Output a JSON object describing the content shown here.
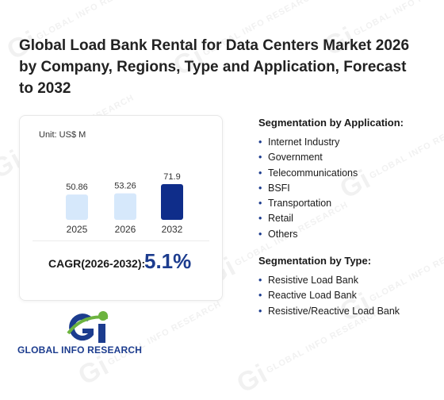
{
  "title": "Global Load Bank Rental for Data Centers Market 2026 by Company, Regions, Type and Application, Forecast to 2032",
  "watermark_text": "GLOBAL INFO RESEARCH",
  "chart_data": {
    "type": "bar",
    "unit": "Unit: US$ M",
    "categories": [
      "2025",
      "2026",
      "2032"
    ],
    "values": [
      50.86,
      53.26,
      71.9
    ],
    "value_labels": [
      "50.86",
      "53.26",
      "71.9"
    ],
    "colors": [
      "#d6e8fb",
      "#d6e8fb",
      "#0f2d8a"
    ],
    "title": "",
    "xlabel": "",
    "ylabel": "",
    "grid": false
  },
  "cagr": {
    "label": "CAGR(2026-2032):",
    "value": "5.1%"
  },
  "application": {
    "heading": "Segmentation by Application:",
    "items": [
      "Internet Industry",
      "Government",
      "Telecommunications",
      "BSFI",
      "Transportation",
      "Retail",
      "Others"
    ]
  },
  "type_segment": {
    "heading": "Segmentation by Type:",
    "items": [
      "Resistive Load Bank",
      "Reactive Load Bank",
      "Resistive/Reactive Load Bank"
    ]
  },
  "logo": {
    "name": "GLOBAL INFO RESEARCH",
    "colors": {
      "blue": "#1c3c8e",
      "green": "#6cb33f"
    }
  }
}
